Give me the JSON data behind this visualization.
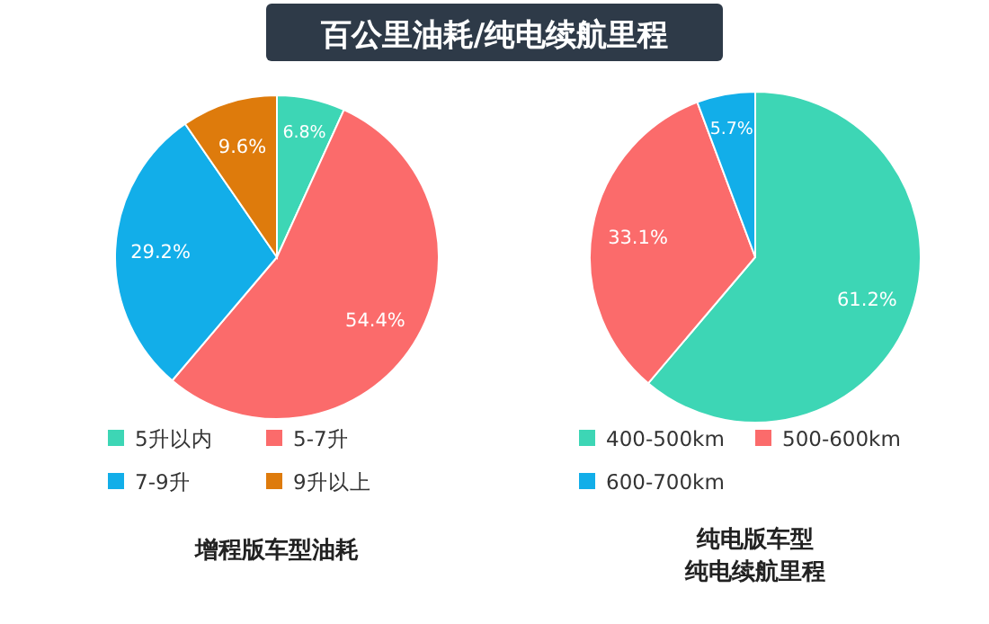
{
  "chart_data": [
    {
      "type": "pie",
      "title": "百公里油耗/纯电续航里程",
      "xlabel": "增程版车型油耗",
      "categories": [
        "5升以内",
        "5-7升",
        "7-9升",
        "9升以上"
      ],
      "values": [
        6.8,
        54.4,
        29.2,
        9.6
      ],
      "colors": [
        "#3dd6b5",
        "#fb6b6b",
        "#12aee9",
        "#de7b0c"
      ],
      "value_labels": [
        "6.8%",
        "54.4%",
        "29.2%",
        "9.6%"
      ],
      "legend": "bottom"
    },
    {
      "type": "pie",
      "xlabel": "纯电版车型纯电续航里程",
      "categories": [
        "400-500km",
        "500-600km",
        "600-700km"
      ],
      "values": [
        61.2,
        33.1,
        5.7
      ],
      "colors": [
        "#3dd6b5",
        "#fb6b6b",
        "#12aee9"
      ],
      "value_labels": [
        "61.2%",
        "33.1%",
        "5.7%"
      ],
      "legend": "bottom"
    }
  ]
}
